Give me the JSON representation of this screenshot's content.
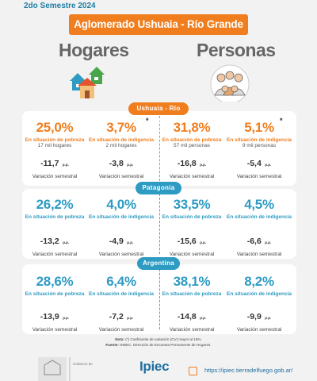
{
  "header": {
    "period": "2do Semestre 2024",
    "title": "Aglomerado Ushuaia - Río Grande"
  },
  "columns": {
    "left": "Hogares",
    "right": "Personas"
  },
  "icons": {
    "left": "houses-icon",
    "right": "people-group-icon"
  },
  "colors": {
    "orange": "#f07e1e",
    "blue": "#2e9bc3"
  },
  "sections": [
    {
      "name": "Ushuaia - Río Grande",
      "hogares": {
        "pobreza": {
          "value": "25,0%",
          "label": "En situación de pobreza",
          "detail": "17  mil hogares",
          "var": "-11,7",
          "var_unit": "p.p.",
          "var_label": "Variación semestral"
        },
        "indigencia": {
          "value": "3,7%",
          "label": "En situación de indigencia",
          "detail": "2  mil hogares",
          "var": "-3,8",
          "var_unit": "p.p.",
          "var_label": "Variación semestral",
          "mark": "*"
        }
      },
      "personas": {
        "pobreza": {
          "value": "31,8%",
          "label": "En situación de pobreza",
          "detail": "57 mil personas",
          "var": "-16,8",
          "var_unit": "p.p.",
          "var_label": "Variación semestral"
        },
        "indigencia": {
          "value": "5,1%",
          "label": "En situación de indigencia",
          "detail": "9  mil personas",
          "var": "-5,4",
          "var_unit": "p.p.",
          "var_label": "Variación semestral",
          "mark": "*"
        }
      }
    },
    {
      "name": "Patagonia",
      "hogares": {
        "pobreza": {
          "value": "26,2%",
          "label": "En situación de pobreza",
          "var": "-13,2",
          "var_unit": "p.p.",
          "var_label": "Variación semestral"
        },
        "indigencia": {
          "value": "4,0%",
          "label": "En situación de indigencia",
          "var": "-4,9",
          "var_unit": "p.p.",
          "var_label": "Variación semestral"
        }
      },
      "personas": {
        "pobreza": {
          "value": "33,5%",
          "label": "En situación de pobreza",
          "var": "-15,6",
          "var_unit": "p.p.",
          "var_label": "Variación semestral"
        },
        "indigencia": {
          "value": "4,5%",
          "label": "En situación de indigencia",
          "var": "-6,6",
          "var_unit": "p.p.",
          "var_label": "Variación semestral"
        }
      }
    },
    {
      "name": "Argentina",
      "hogares": {
        "pobreza": {
          "value": "28,6%",
          "label": "En situación de pobreza",
          "var": "-13,9",
          "var_unit": "p.p.",
          "var_label": "Variación semestral"
        },
        "indigencia": {
          "value": "6,4%",
          "label": "En situación de indigencia",
          "var": "-7,2",
          "var_unit": "p.p.",
          "var_label": "Variación semestral"
        }
      },
      "personas": {
        "pobreza": {
          "value": "38,1%",
          "label": "En situación de pobreza",
          "var": "-14,8",
          "var_unit": "p.p.",
          "var_label": "Variación semestral"
        },
        "indigencia": {
          "value": "8,2%",
          "label": "En situación de indigencia",
          "var": "-9,9",
          "var_unit": "p.p.",
          "var_label": "Variación semestral"
        }
      }
    }
  ],
  "notes": {
    "nota_label": "Nota:",
    "nota_text": "(*) Coeficiente de variación (CV) mayor al 16%.",
    "fuente_label": "Fuente:",
    "fuente_text": "INDEC. Dirección de Encuesta Permanente de Hogares."
  },
  "footer": {
    "left_logo_text": "Gobierno de",
    "brand": "Ipiec",
    "link": "https://ipiec.tierradelfuego.gob.ar/"
  }
}
